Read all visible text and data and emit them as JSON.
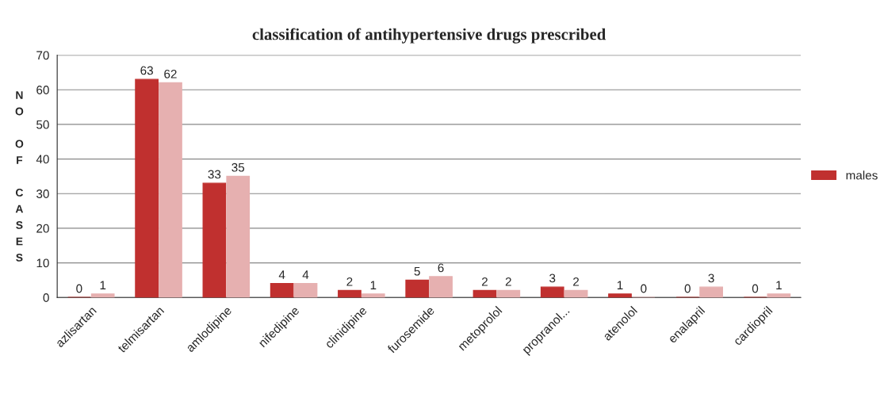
{
  "chart_data": {
    "type": "bar",
    "title": "classification of antihypertensive drugs prescribed",
    "ylabel": "NO OF CASES",
    "categories": [
      "azlisartan",
      "telmisartan",
      "amlodipine",
      "nifedipine",
      "clinidipine",
      "furosemide",
      "metoprolol",
      "propranol...",
      "atenolol",
      "enalapril",
      "cardiopril"
    ],
    "series": [
      {
        "name": "males",
        "color": "#c0302f",
        "values": [
          0,
          63,
          33,
          4,
          2,
          5,
          2,
          3,
          1,
          0,
          0
        ]
      },
      {
        "color": "#e6b0b0",
        "values": [
          1,
          62,
          35,
          4,
          1,
          6,
          2,
          2,
          0,
          3,
          1
        ]
      }
    ],
    "ylim": [
      0,
      70
    ],
    "yticks": [
      0,
      10,
      20,
      30,
      40,
      50,
      60,
      70
    ],
    "grid": "y",
    "legend": "right",
    "data_labels": true
  }
}
